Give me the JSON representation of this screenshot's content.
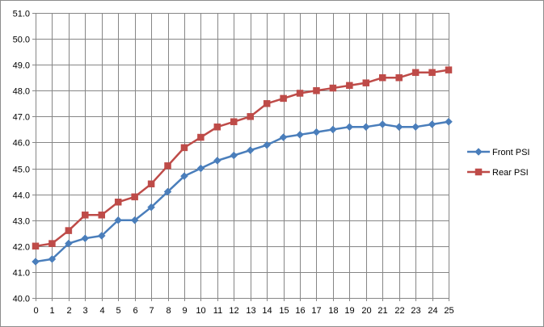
{
  "chart_data": {
    "type": "line",
    "title": "",
    "xlabel": "",
    "ylabel": "",
    "x": [
      0,
      1,
      2,
      3,
      4,
      5,
      6,
      7,
      8,
      9,
      10,
      11,
      12,
      13,
      14,
      15,
      16,
      17,
      18,
      19,
      20,
      21,
      22,
      23,
      24,
      25
    ],
    "x_tick_labels": [
      "0",
      "1",
      "2",
      "3",
      "4",
      "5",
      "6",
      "7",
      "8",
      "9",
      "10",
      "11",
      "12",
      "13",
      "14",
      "15",
      "16",
      "17",
      "18",
      "19",
      "20",
      "21",
      "22",
      "23",
      "24",
      "25"
    ],
    "ylim": [
      40.0,
      51.0
    ],
    "y_ticks": [
      40.0,
      41.0,
      42.0,
      43.0,
      44.0,
      45.0,
      46.0,
      47.0,
      48.0,
      49.0,
      50.0,
      51.0
    ],
    "y_tick_labels": [
      "40.0",
      "41.0",
      "42.0",
      "43.0",
      "44.0",
      "45.0",
      "46.0",
      "47.0",
      "48.0",
      "49.0",
      "50.0",
      "51.0"
    ],
    "grid": true,
    "legend_position": "right",
    "series": [
      {
        "name": "Front PSI",
        "color": "#4a7ebb",
        "marker": "diamond",
        "values": [
          41.4,
          41.5,
          42.1,
          42.3,
          42.4,
          43.0,
          43.0,
          43.5,
          44.1,
          44.7,
          45.0,
          45.3,
          45.5,
          45.7,
          45.9,
          46.2,
          46.3,
          46.4,
          46.5,
          46.6,
          46.6,
          46.7,
          46.6,
          46.6,
          46.7,
          46.8
        ]
      },
      {
        "name": "Rear PSI",
        "color": "#be4b48",
        "marker": "square",
        "values": [
          42.0,
          42.1,
          42.6,
          43.2,
          43.2,
          43.7,
          43.9,
          44.4,
          45.1,
          45.8,
          46.2,
          46.6,
          46.8,
          47.0,
          47.5,
          47.7,
          47.9,
          48.0,
          48.1,
          48.2,
          48.3,
          48.5,
          48.5,
          48.7,
          48.7,
          48.8
        ]
      }
    ]
  }
}
